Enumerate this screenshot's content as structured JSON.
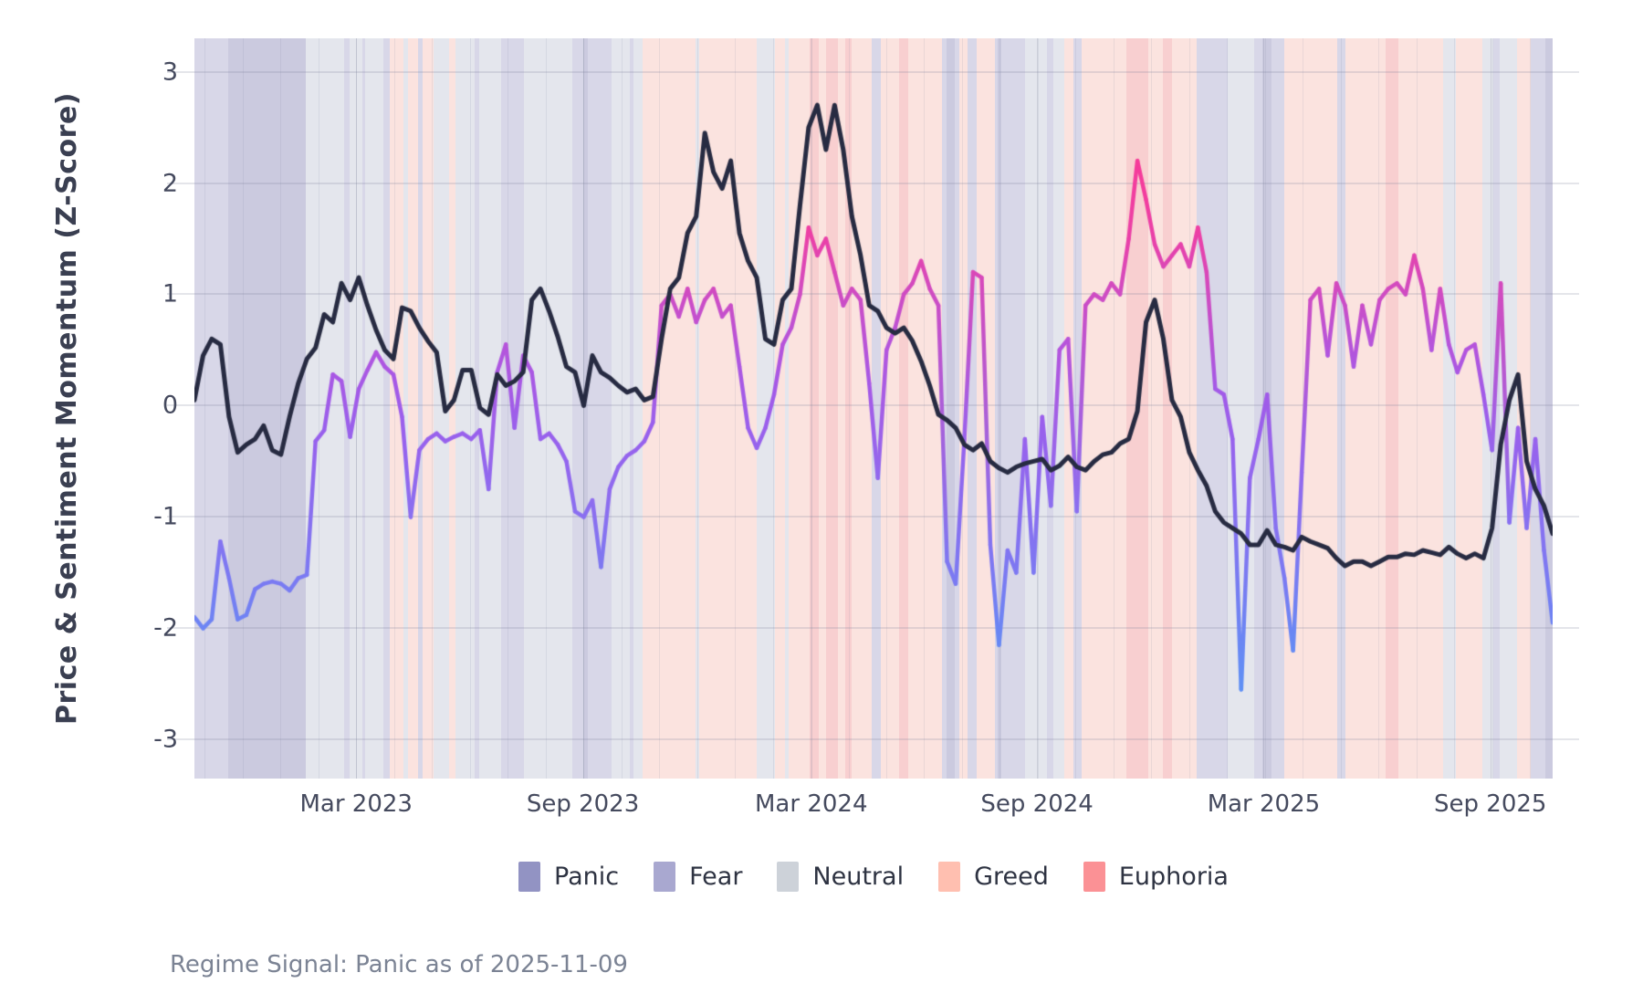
{
  "figure": {
    "caption": "Regime Signal: Panic as of 2025-11-09",
    "y_axis": {
      "label": "Price & Sentiment Momentum (Z-Score)",
      "ticks": [
        3,
        2,
        1,
        0,
        -1,
        -2,
        -3
      ],
      "range_top": 3.3,
      "range_bottom": -3.35
    },
    "x_axis": {
      "ticks": [
        "Mar 2023",
        "Sep 2023",
        "Mar 2024",
        "Sep 2024",
        "Mar 2025",
        "Sep 2025"
      ],
      "tick_weeks": [
        18.7,
        44.9,
        71.3,
        97.4,
        123.6,
        149.8
      ],
      "month_step_weeks": 4.377,
      "total_weeks": 157
    }
  },
  "legend": {
    "items": [
      {
        "label": "Panic",
        "color": "#9293c3"
      },
      {
        "label": "Fear",
        "color": "#a9a8d0"
      },
      {
        "label": "Neutral",
        "color": "#cdd2d9"
      },
      {
        "label": "Greed",
        "color": "#ffbfb0"
      },
      {
        "label": "Euphoria",
        "color": "#fb9195"
      }
    ]
  },
  "chart_data": {
    "type": "line",
    "title": "",
    "xlabel": "",
    "ylabel": "Price & Sentiment Momentum (Z-Score)",
    "x_start": "2022-11-07",
    "x_end": "2025-11-09",
    "x_unit": "week_index",
    "ylim": [
      -3.35,
      3.3
    ],
    "grid": true,
    "series": [
      {
        "name": "price_momentum",
        "style": "solid",
        "color": "#272b42",
        "line_width": 5,
        "values": [
          0.05,
          0.45,
          0.6,
          0.55,
          -0.1,
          -0.42,
          -0.35,
          -0.3,
          -0.18,
          -0.4,
          -0.44,
          -0.1,
          0.2,
          0.42,
          0.52,
          0.82,
          0.75,
          1.1,
          0.95,
          1.15,
          0.9,
          0.68,
          0.5,
          0.42,
          0.88,
          0.85,
          0.7,
          0.58,
          0.48,
          -0.05,
          0.05,
          0.32,
          0.32,
          -0.02,
          -0.08,
          0.28,
          0.18,
          0.22,
          0.3,
          0.95,
          1.05,
          0.85,
          0.62,
          0.35,
          0.3,
          0.0,
          0.45,
          0.3,
          0.25,
          0.18,
          0.12,
          0.15,
          0.05,
          0.08,
          0.6,
          1.05,
          1.15,
          1.55,
          1.7,
          2.45,
          2.1,
          1.95,
          2.2,
          1.55,
          1.3,
          1.15,
          0.6,
          0.55,
          0.95,
          1.05,
          1.8,
          2.5,
          2.7,
          2.3,
          2.7,
          2.3,
          1.7,
          1.35,
          0.9,
          0.85,
          0.7,
          0.65,
          0.7,
          0.58,
          0.4,
          0.18,
          -0.08,
          -0.13,
          -0.2,
          -0.35,
          -0.4,
          -0.34,
          -0.5,
          -0.56,
          -0.6,
          -0.55,
          -0.52,
          -0.5,
          -0.48,
          -0.58,
          -0.54,
          -0.46,
          -0.55,
          -0.58,
          -0.5,
          -0.44,
          -0.42,
          -0.34,
          -0.3,
          -0.05,
          0.75,
          0.95,
          0.6,
          0.05,
          -0.1,
          -0.42,
          -0.58,
          -0.72,
          -0.95,
          -1.05,
          -1.1,
          -1.15,
          -1.25,
          -1.25,
          -1.12,
          -1.25,
          -1.27,
          -1.3,
          -1.18,
          -1.22,
          -1.25,
          -1.28,
          -1.37,
          -1.44,
          -1.4,
          -1.4,
          -1.44,
          -1.4,
          -1.36,
          -1.36,
          -1.33,
          -1.34,
          -1.3,
          -1.32,
          -1.34,
          -1.27,
          -1.33,
          -1.37,
          -1.33,
          -1.37,
          -1.1,
          -0.35,
          0.05,
          0.28,
          -0.5,
          -0.75,
          -0.9,
          -1.15
        ]
      },
      {
        "name": "sentiment_momentum",
        "style": "solid",
        "line_width": 4.5,
        "color_by_value": true,
        "color_scale": [
          [
            -2.4,
            "#5f90f5"
          ],
          [
            -1.6,
            "#7a7bf2"
          ],
          [
            -0.8,
            "#8f6cef"
          ],
          [
            0.0,
            "#9d5ceb"
          ],
          [
            0.5,
            "#b355de"
          ],
          [
            1.0,
            "#cf4cc3"
          ],
          [
            1.6,
            "#ef3fa3"
          ],
          [
            2.3,
            "#f73c98"
          ]
        ],
        "values": [
          -1.9,
          -2.0,
          -1.92,
          -1.22,
          -1.55,
          -1.92,
          -1.88,
          -1.65,
          -1.6,
          -1.58,
          -1.6,
          -1.66,
          -1.55,
          -1.52,
          -0.32,
          -0.22,
          0.28,
          0.22,
          -0.28,
          0.15,
          0.32,
          0.48,
          0.35,
          0.28,
          -0.1,
          -1.0,
          -0.4,
          -0.3,
          -0.25,
          -0.32,
          -0.28,
          -0.25,
          -0.3,
          -0.22,
          -0.75,
          0.3,
          0.55,
          -0.2,
          0.45,
          0.3,
          -0.3,
          -0.25,
          -0.35,
          -0.5,
          -0.95,
          -1.0,
          -0.85,
          -1.45,
          -0.75,
          -0.55,
          -0.45,
          -0.4,
          -0.32,
          -0.15,
          0.9,
          1.0,
          0.8,
          1.05,
          0.75,
          0.95,
          1.05,
          0.8,
          0.9,
          0.35,
          -0.2,
          -0.38,
          -0.2,
          0.1,
          0.55,
          0.7,
          1.0,
          1.6,
          1.35,
          1.5,
          1.2,
          0.9,
          1.05,
          0.95,
          0.2,
          -0.65,
          0.5,
          0.7,
          1.0,
          1.1,
          1.3,
          1.05,
          0.9,
          -1.4,
          -1.6,
          -0.3,
          1.2,
          1.15,
          -1.25,
          -2.15,
          -1.3,
          -1.5,
          -0.3,
          -1.5,
          -0.1,
          -0.9,
          0.5,
          0.6,
          -0.95,
          0.9,
          1.0,
          0.95,
          1.1,
          1.0,
          1.5,
          2.2,
          1.85,
          1.45,
          1.25,
          1.35,
          1.45,
          1.25,
          1.6,
          1.2,
          0.15,
          0.1,
          -0.3,
          -2.55,
          -0.65,
          -0.3,
          0.1,
          -1.1,
          -1.55,
          -2.2,
          -0.6,
          0.95,
          1.05,
          0.45,
          1.1,
          0.9,
          0.35,
          0.9,
          0.55,
          0.95,
          1.05,
          1.1,
          1.0,
          1.35,
          1.05,
          0.5,
          1.05,
          0.55,
          0.3,
          0.5,
          0.55,
          0.1,
          -0.4,
          1.1,
          -1.05,
          -0.2,
          -1.1,
          -0.3,
          -1.3,
          -1.95
        ]
      }
    ],
    "regimes": {
      "band_colors": {
        "panic": "#cbcadf",
        "fear": "#d8d7e8",
        "neutral": "#e4e6ed",
        "greed": "#fbe3df",
        "euphoria": "#f8cfd0"
      },
      "segments": [
        [
          0,
          3.9,
          "fear"
        ],
        [
          3.9,
          12.9,
          "panic"
        ],
        [
          12.9,
          17.3,
          "neutral"
        ],
        [
          17.3,
          17.9,
          "fear"
        ],
        [
          17.9,
          19.4,
          "neutral"
        ],
        [
          19.4,
          19.7,
          "fear"
        ],
        [
          19.7,
          21.8,
          "neutral"
        ],
        [
          21.8,
          22.6,
          "fear"
        ],
        [
          22.6,
          24.2,
          "greed"
        ],
        [
          24.2,
          24.7,
          "neutral"
        ],
        [
          24.7,
          25.8,
          "greed"
        ],
        [
          25.8,
          26.4,
          "fear"
        ],
        [
          26.4,
          27.6,
          "greed"
        ],
        [
          27.6,
          29.4,
          "neutral"
        ],
        [
          29.4,
          30.2,
          "greed"
        ],
        [
          30.2,
          32.4,
          "neutral"
        ],
        [
          32.4,
          32.9,
          "fear"
        ],
        [
          32.9,
          35.5,
          "neutral"
        ],
        [
          35.5,
          38.1,
          "fear"
        ],
        [
          38.1,
          43.7,
          "neutral"
        ],
        [
          43.7,
          45.0,
          "fear"
        ],
        [
          45.0,
          45.5,
          "panic"
        ],
        [
          45.5,
          48.2,
          "fear"
        ],
        [
          48.2,
          50.3,
          "neutral"
        ],
        [
          50.3,
          50.8,
          "fear"
        ],
        [
          50.8,
          51.8,
          "neutral"
        ],
        [
          51.8,
          57.9,
          "greed"
        ],
        [
          57.9,
          58.3,
          "neutral"
        ],
        [
          58.3,
          65.0,
          "greed"
        ],
        [
          65.0,
          67.1,
          "neutral"
        ],
        [
          67.1,
          68.3,
          "greed"
        ],
        [
          68.3,
          68.7,
          "neutral"
        ],
        [
          68.7,
          71.1,
          "greed"
        ],
        [
          71.1,
          72.2,
          "euphoria"
        ],
        [
          72.2,
          73.0,
          "greed"
        ],
        [
          73.0,
          74.4,
          "euphoria"
        ],
        [
          74.4,
          75.2,
          "greed"
        ],
        [
          75.2,
          76.0,
          "euphoria"
        ],
        [
          76.0,
          78.3,
          "greed"
        ],
        [
          78.3,
          79.3,
          "fear"
        ],
        [
          79.3,
          81.5,
          "greed"
        ],
        [
          81.5,
          82.5,
          "euphoria"
        ],
        [
          82.5,
          86.4,
          "greed"
        ],
        [
          86.4,
          86.9,
          "fear"
        ],
        [
          86.9,
          87.9,
          "panic"
        ],
        [
          87.9,
          88.4,
          "fear"
        ],
        [
          88.4,
          89.4,
          "greed"
        ],
        [
          89.4,
          90.4,
          "fear"
        ],
        [
          90.4,
          92.5,
          "greed"
        ],
        [
          92.5,
          92.8,
          "fear"
        ],
        [
          92.8,
          93.3,
          "panic"
        ],
        [
          93.3,
          96.0,
          "fear"
        ],
        [
          96.0,
          98.5,
          "neutral"
        ],
        [
          98.5,
          99.3,
          "fear"
        ],
        [
          99.3,
          100.6,
          "neutral"
        ],
        [
          100.6,
          101.6,
          "greed"
        ],
        [
          101.6,
          102.6,
          "fear"
        ],
        [
          102.6,
          107.7,
          "greed"
        ],
        [
          107.7,
          110.3,
          "euphoria"
        ],
        [
          110.3,
          111.9,
          "greed"
        ],
        [
          111.9,
          113.0,
          "euphoria"
        ],
        [
          113.0,
          115.8,
          "greed"
        ],
        [
          115.8,
          119.4,
          "fear"
        ],
        [
          119.4,
          122.5,
          "neutral"
        ],
        [
          122.5,
          123.4,
          "fear"
        ],
        [
          123.4,
          124.5,
          "panic"
        ],
        [
          124.5,
          126.0,
          "fear"
        ],
        [
          126.0,
          132.1,
          "greed"
        ],
        [
          132.1,
          133.0,
          "fear"
        ],
        [
          133.0,
          137.7,
          "greed"
        ],
        [
          137.7,
          139.2,
          "euphoria"
        ],
        [
          139.2,
          144.3,
          "greed"
        ],
        [
          144.3,
          145.8,
          "neutral"
        ],
        [
          145.8,
          148.9,
          "greed"
        ],
        [
          148.9,
          150.1,
          "neutral"
        ],
        [
          150.1,
          150.9,
          "fear"
        ],
        [
          150.9,
          152.9,
          "neutral"
        ],
        [
          152.9,
          154.5,
          "greed"
        ],
        [
          154.5,
          156.2,
          "fear"
        ],
        [
          156.2,
          157,
          "panic"
        ]
      ]
    }
  }
}
